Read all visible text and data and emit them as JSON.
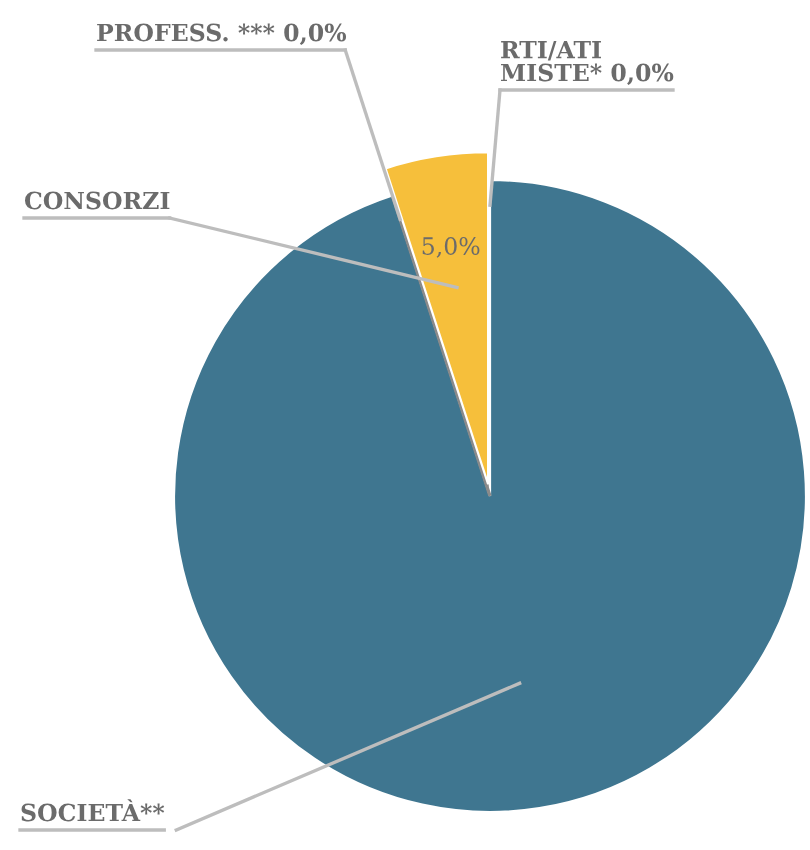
{
  "chart_data": {
    "type": "pie",
    "categories": [
      "RTI/ATI\nMISTE*",
      "SOCIETÀ**",
      "PROFESS. ***",
      "CONSORZI"
    ],
    "values": [
      0,
      95,
      0,
      5
    ],
    "value_labels": [
      "0,0%",
      null,
      "0,0%",
      "5,0%"
    ],
    "colors": [
      "#8a8a8a",
      "#3f7690",
      "#8a8a8a",
      "#f6bf3b"
    ],
    "legend": false
  }
}
